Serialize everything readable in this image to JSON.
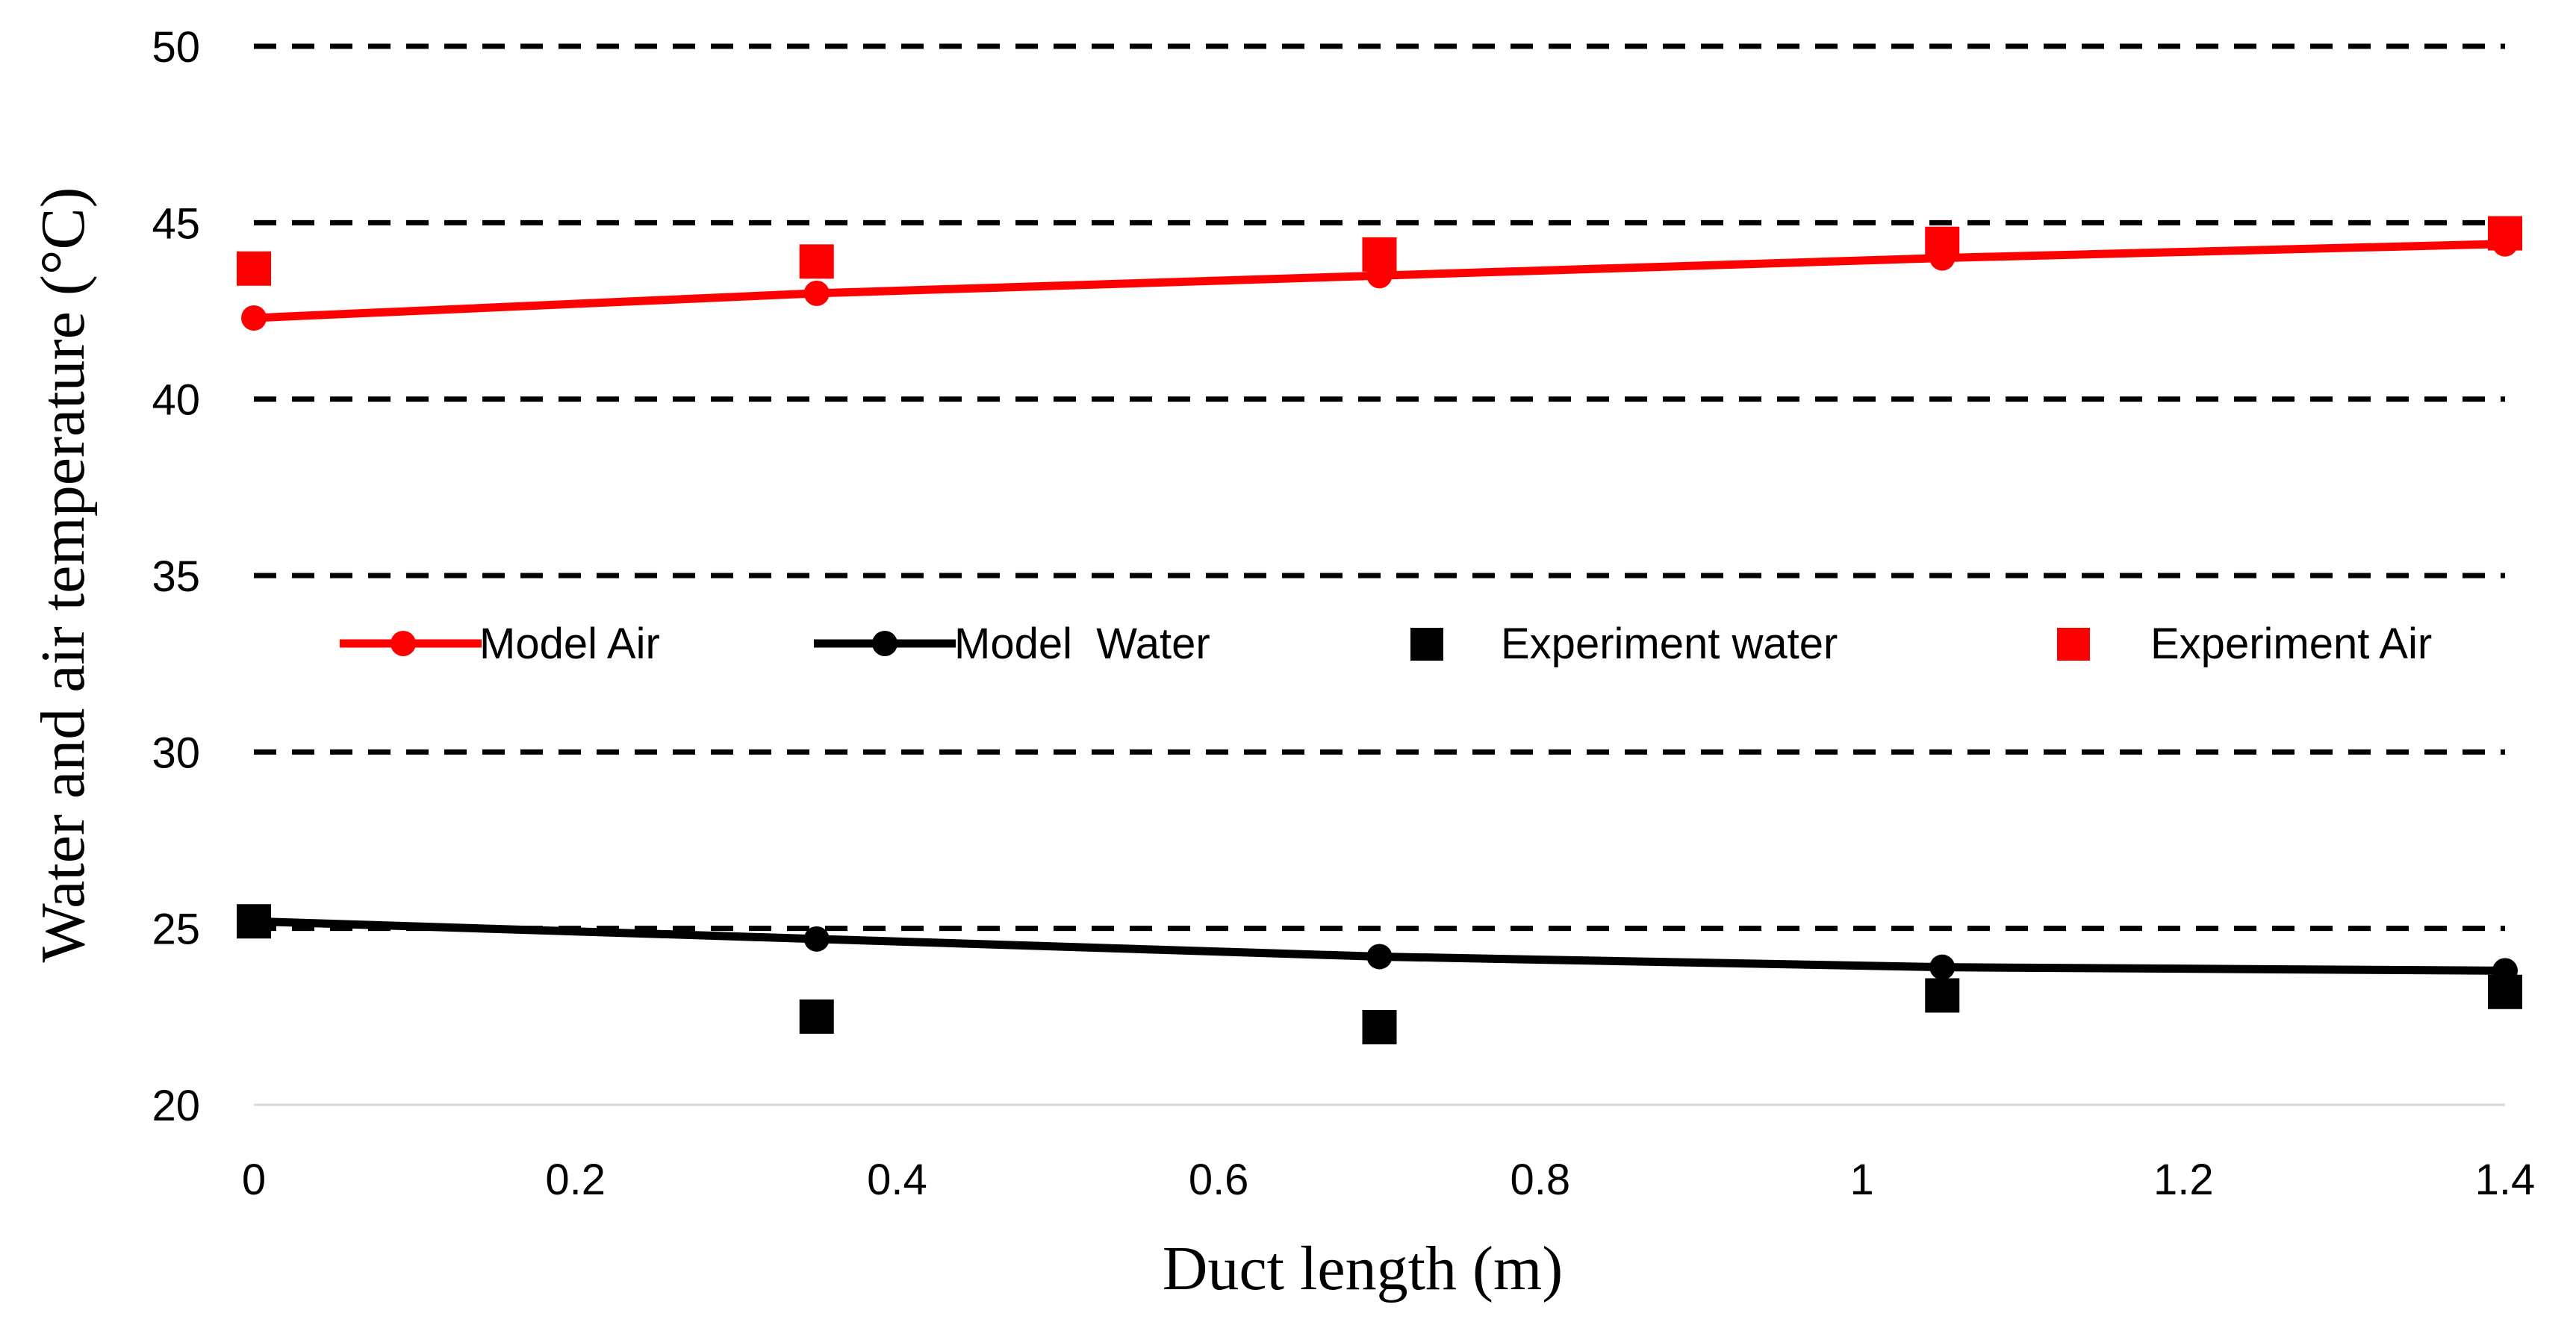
{
  "chart_data": {
    "type": "line",
    "title": "",
    "xlabel": "Duct length (m)",
    "ylabel": "Water and air temperature (°C)",
    "xlim": [
      0,
      1.4
    ],
    "ylim": [
      20,
      50
    ],
    "xticks": [
      0,
      0.2,
      0.4,
      0.6,
      0.8,
      1,
      1.2,
      1.4
    ],
    "xtick_labels": [
      "0",
      "0.2",
      "0.4",
      "0.6",
      "0.8",
      "1",
      "1.2",
      "1.4"
    ],
    "yticks": [
      20,
      25,
      30,
      35,
      40,
      45,
      50
    ],
    "ytick_labels": [
      "20",
      "25",
      "30",
      "35",
      "40",
      "45",
      "50"
    ],
    "grid": "horizontal dashed",
    "legend_position": "center",
    "series": [
      {
        "name": "Model Air",
        "kind": "line-with-circle-markers",
        "color": "#ff0000",
        "x": [
          0,
          0.35,
          0.7,
          1.05,
          1.4
        ],
        "values": [
          42.3,
          43.0,
          43.5,
          44.0,
          44.4
        ]
      },
      {
        "name": "Model  Water",
        "kind": "line-with-circle-markers",
        "color": "#000000",
        "x": [
          0,
          0.35,
          0.7,
          1.05,
          1.4
        ],
        "values": [
          25.2,
          24.7,
          24.2,
          23.9,
          23.8
        ]
      },
      {
        "name": "Experiment water",
        "kind": "square-markers",
        "color": "#000000",
        "x": [
          0,
          0.35,
          0.7,
          1.05,
          1.4
        ],
        "values": [
          25.2,
          22.5,
          22.2,
          23.1,
          23.2
        ]
      },
      {
        "name": "Experiment Air",
        "kind": "square-markers",
        "color": "#ff0000",
        "x": [
          0,
          0.35,
          0.7,
          1.05,
          1.4
        ],
        "values": [
          43.7,
          43.9,
          44.1,
          44.4,
          44.7
        ]
      }
    ]
  }
}
